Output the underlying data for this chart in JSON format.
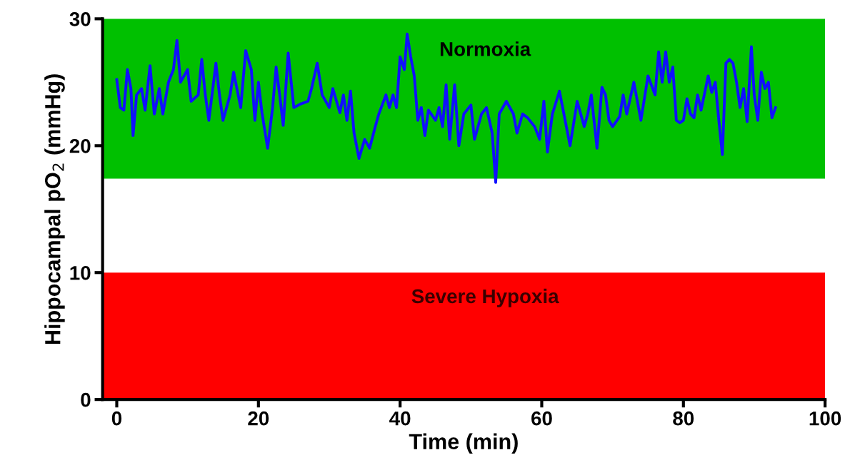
{
  "chart_data": {
    "type": "line",
    "xlabel": "Time (min)",
    "ylabel": "Hippocampal pO$_{2}$ (mmHg)",
    "xlim": [
      -2,
      100
    ],
    "xticks": [
      0,
      20,
      40,
      60,
      80,
      100
    ],
    "ylim": [
      0,
      30
    ],
    "yticks": [
      0,
      10,
      20,
      30
    ],
    "grid": false,
    "legend": false,
    "bands": [
      {
        "axis": "y",
        "from": 17.4,
        "to": 30,
        "label": "Normoxia",
        "color": "#00c000"
      },
      {
        "axis": "y",
        "from": 0,
        "to": 10,
        "label": "Severe Hypoxia",
        "color": "#ff0000"
      }
    ],
    "series": [
      {
        "color": "#1010ff",
        "x": [
          0,
          0.5,
          1,
          1.5,
          2,
          2.3,
          2.8,
          3.5,
          4,
          4.7,
          5.3,
          6,
          6.5,
          7.3,
          8,
          8.5,
          9,
          10,
          10.5,
          11.5,
          12,
          12.5,
          13,
          14,
          14.5,
          15,
          16,
          16.5,
          17.5,
          18.2,
          19,
          19.5,
          20,
          20.5,
          21.3,
          22,
          22.5,
          23,
          23.5,
          24.2,
          25,
          26,
          27,
          27.5,
          28.3,
          29,
          30,
          30.5,
          31.5,
          32,
          32.5,
          33,
          33.5,
          34.2,
          35,
          35.7,
          36.5,
          37,
          38,
          38.5,
          39,
          39.5,
          40,
          40.6,
          41,
          41.5,
          42,
          42.5,
          43,
          43.5,
          44,
          45,
          45.5,
          46,
          46.5,
          47,
          47.7,
          48.3,
          49,
          50,
          50.5,
          51.5,
          52.2,
          53,
          53.5,
          54,
          55,
          56,
          56.5,
          57.3,
          58,
          59,
          59.7,
          60.3,
          60.8,
          61.5,
          62.5,
          63.3,
          64,
          65,
          66,
          66.5,
          67,
          67.8,
          68.5,
          69,
          69.5,
          70,
          71,
          71.5,
          72,
          73,
          74,
          75,
          76,
          76.5,
          77,
          77.5,
          78,
          78.5,
          79,
          79.5,
          80,
          80.5,
          81,
          81.5,
          82,
          82.5,
          83.5,
          84,
          84.5,
          85,
          85.5,
          86,
          86.5,
          87,
          87.5,
          88,
          88.5,
          89,
          89.6,
          90,
          90.5,
          91,
          91.5,
          92,
          92.5,
          93
        ],
        "values": [
          25.2,
          23,
          22.8,
          26,
          24.5,
          20.8,
          24,
          24.5,
          22.8,
          26.3,
          22.5,
          24.5,
          22.5,
          25,
          26,
          28.3,
          25,
          26,
          23.5,
          24,
          26.8,
          24,
          22,
          26.5,
          24,
          22,
          24,
          25.8,
          23,
          27.5,
          26,
          22,
          25,
          22.6,
          19.8,
          23,
          26.2,
          24,
          21.6,
          27.3,
          23,
          23.3,
          23.5,
          24.5,
          26.5,
          24,
          23,
          24.5,
          22.6,
          24,
          22,
          24.3,
          21,
          19,
          20.5,
          19.8,
          21.5,
          22.5,
          24,
          23,
          24,
          23,
          27,
          26,
          28.8,
          27,
          25.5,
          22,
          23,
          20.8,
          22.8,
          22,
          23,
          21.5,
          24.8,
          20.5,
          24.8,
          20,
          22.5,
          23.2,
          20.5,
          22.5,
          23,
          21,
          17.1,
          22.5,
          23.5,
          22.5,
          21,
          22.5,
          22.2,
          21.5,
          20.5,
          23.5,
          19.5,
          22.5,
          24.3,
          22,
          20,
          23.5,
          21.5,
          22.5,
          24,
          19.8,
          24.6,
          24,
          22,
          21.5,
          22.3,
          24,
          22.5,
          25,
          22,
          25.5,
          24,
          27.4,
          25,
          27.4,
          25,
          26.2,
          22,
          21.8,
          22,
          23.7,
          22.5,
          22.2,
          24,
          22.8,
          25.5,
          24.2,
          25,
          22,
          19.3,
          26.5,
          26.8,
          26.5,
          25,
          23,
          24.5,
          21.9,
          27.8,
          24,
          22,
          25.8,
          24.5,
          25,
          22.2,
          23
        ]
      }
    ]
  }
}
